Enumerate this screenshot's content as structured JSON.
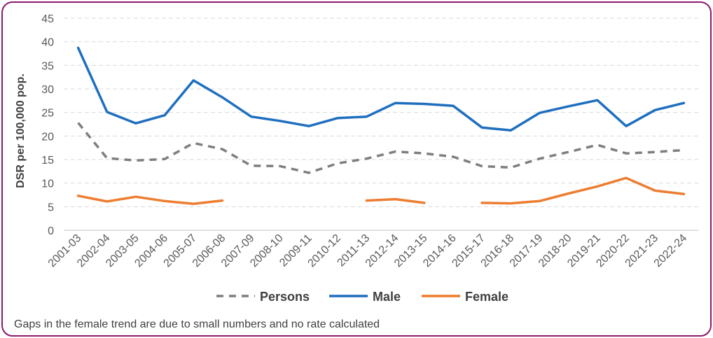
{
  "chart_data": {
    "type": "line",
    "title": "",
    "xlabel": "",
    "ylabel": "DSR per 100,000 pop.",
    "ylim": [
      0,
      45
    ],
    "yticks": [
      0,
      5,
      10,
      15,
      20,
      25,
      30,
      35,
      40,
      45
    ],
    "grid": true,
    "legend_position": "bottom",
    "categories": [
      "2001-03",
      "2002-04",
      "2003-05",
      "2004-06",
      "2005-07",
      "2006-08",
      "2007-09",
      "2008-10",
      "2009-11",
      "2010-12",
      "2011-13",
      "2012-14",
      "2013-15",
      "2014-16",
      "2015-17",
      "2016-18",
      "2017-19",
      "2018-20",
      "2019-21",
      "2020-22",
      "2021-23",
      "2022-24"
    ],
    "series": [
      {
        "name": "Persons",
        "style": "dashed",
        "color": "#7f7f7f",
        "values": [
          22.8,
          15.3,
          14.8,
          15.1,
          18.5,
          17.2,
          13.7,
          13.6,
          12.2,
          14.2,
          15.2,
          16.7,
          16.3,
          15.6,
          13.6,
          13.3,
          15.2,
          16.6,
          18.1,
          16.3,
          16.6,
          17.0
        ]
      },
      {
        "name": "Male",
        "style": "solid",
        "color": "#1f6fbf",
        "values": [
          38.7,
          25.1,
          22.7,
          24.4,
          31.8,
          28.2,
          24.1,
          23.2,
          22.1,
          23.8,
          24.1,
          27.0,
          26.8,
          26.4,
          21.8,
          21.2,
          24.9,
          26.3,
          27.6,
          22.1,
          25.5,
          27.0
        ]
      },
      {
        "name": "Female",
        "style": "solid",
        "color": "#ed7d31",
        "values": [
          7.3,
          6.1,
          7.1,
          6.2,
          5.6,
          6.3,
          null,
          null,
          null,
          null,
          6.3,
          6.6,
          5.8,
          null,
          5.8,
          5.7,
          6.2,
          7.8,
          9.3,
          11.1,
          8.4,
          7.7
        ]
      }
    ]
  },
  "note": "Gaps in the female trend are due to small numbers and no rate calculated"
}
